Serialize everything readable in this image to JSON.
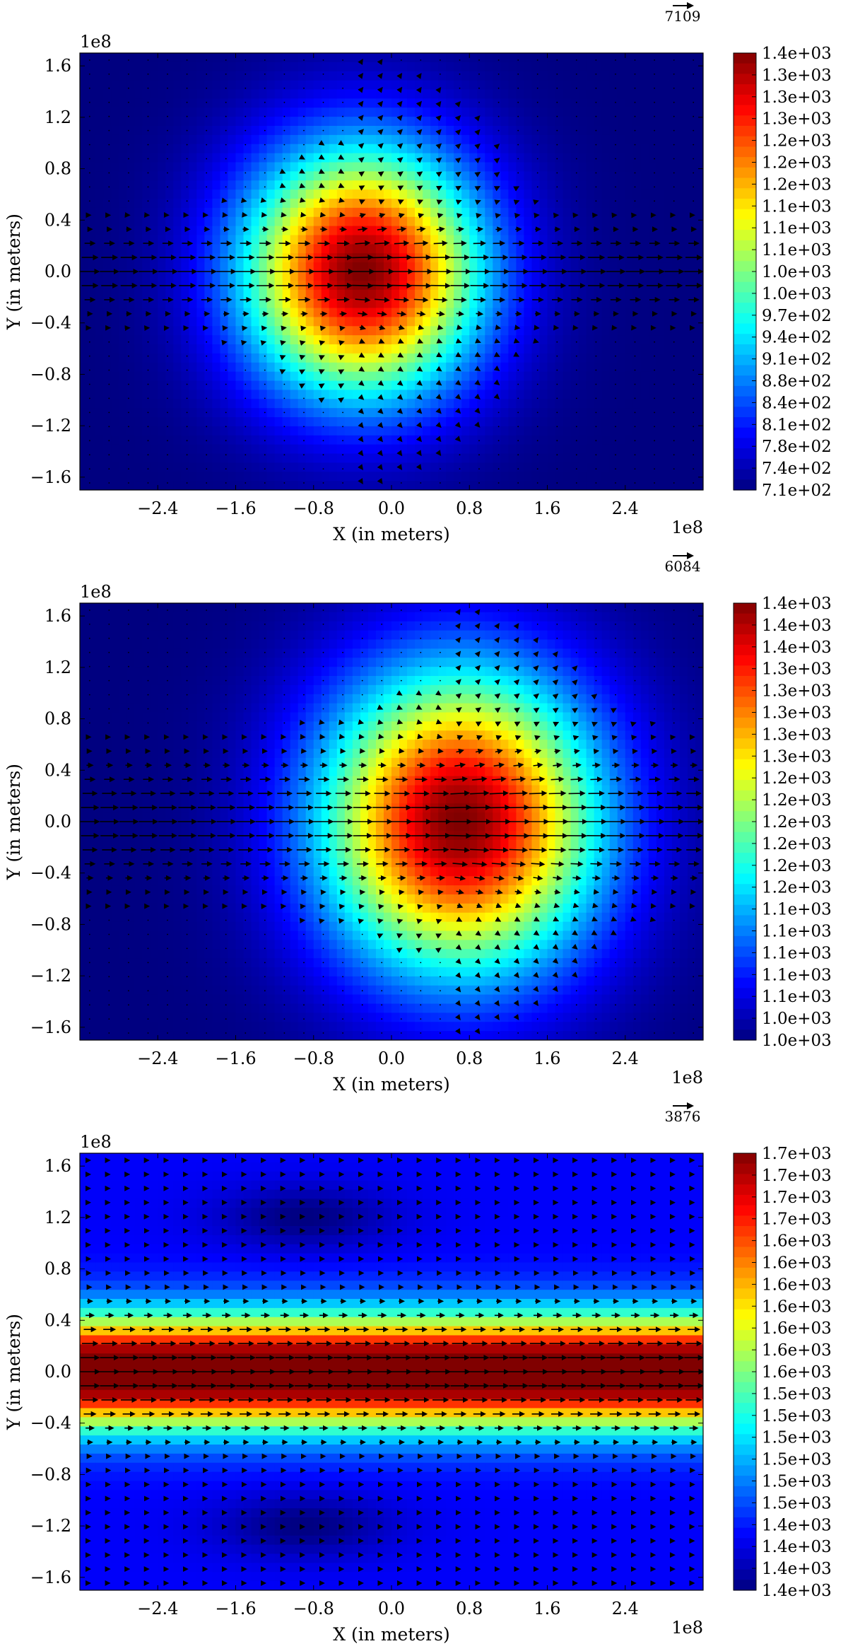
{
  "chart_data": [
    {
      "type": "contour-quiver",
      "xlabel": "X (in meters)",
      "ylabel": "Y (in meters)",
      "x_exponent": "1e8",
      "y_exponent": "1e8",
      "xlim": [
        -3.2,
        3.2
      ],
      "ylim": [
        -1.7,
        1.7
      ],
      "xticks": [
        "−2.4",
        "−1.6",
        "−0.8",
        "0.0",
        "0.8",
        "1.6",
        "2.4"
      ],
      "xtick_values": [
        -2.4,
        -1.6,
        -0.8,
        0.0,
        0.8,
        1.6,
        2.4
      ],
      "yticks": [
        "1.6",
        "1.2",
        "0.8",
        "0.4",
        "0.0",
        "−0.4",
        "−0.8",
        "−1.2",
        "−1.6"
      ],
      "ytick_values": [
        1.6,
        1.2,
        0.8,
        0.4,
        0.0,
        -0.4,
        -0.8,
        -1.2,
        -1.6
      ],
      "quiver_key": "7109",
      "colorbar_range": [
        710,
        1400
      ],
      "colorbar_labels": [
        "1.4e+03",
        "1.3e+03",
        "1.3e+03",
        "1.3e+03",
        "1.2e+03",
        "1.2e+03",
        "1.2e+03",
        "1.1e+03",
        "1.1e+03",
        "1.1e+03",
        "1.0e+03",
        "1.0e+03",
        "9.7e+02",
        "9.4e+02",
        "9.1e+02",
        "8.8e+02",
        "8.4e+02",
        "8.1e+02",
        "7.8e+02",
        "7.4e+02",
        "7.1e+02"
      ],
      "field": {
        "center": [
          -0.3,
          0.0
        ],
        "spread": [
          1.2,
          0.95
        ]
      },
      "flow": "strong rightward jet along y=0"
    },
    {
      "type": "contour-quiver",
      "xlabel": "X (in meters)",
      "ylabel": "Y (in meters)",
      "x_exponent": "1e8",
      "y_exponent": "1e8",
      "xlim": [
        -3.2,
        3.2
      ],
      "ylim": [
        -1.7,
        1.7
      ],
      "xticks": [
        "−2.4",
        "−1.6",
        "−0.8",
        "0.0",
        "0.8",
        "1.6",
        "2.4"
      ],
      "xtick_values": [
        -2.4,
        -1.6,
        -0.8,
        0.0,
        0.8,
        1.6,
        2.4
      ],
      "yticks": [
        "1.6",
        "1.2",
        "0.8",
        "0.4",
        "0.0",
        "−0.4",
        "−0.8",
        "−1.2",
        "−1.6"
      ],
      "ytick_values": [
        1.6,
        1.2,
        0.8,
        0.4,
        0.0,
        -0.4,
        -0.8,
        -1.2,
        -1.6
      ],
      "quiver_key": "6084",
      "colorbar_range": [
        1000,
        1400
      ],
      "colorbar_labels": [
        "1.4e+03",
        "1.4e+03",
        "1.4e+03",
        "1.3e+03",
        "1.3e+03",
        "1.3e+03",
        "1.3e+03",
        "1.3e+03",
        "1.2e+03",
        "1.2e+03",
        "1.2e+03",
        "1.2e+03",
        "1.2e+03",
        "1.2e+03",
        "1.1e+03",
        "1.1e+03",
        "1.1e+03",
        "1.1e+03",
        "1.1e+03",
        "1.0e+03",
        "1.0e+03"
      ],
      "field": {
        "center": [
          0.7,
          0.0
        ],
        "spread": [
          1.4,
          1.15
        ]
      },
      "flow": "rightward jet along y=0"
    },
    {
      "type": "contour-quiver",
      "xlabel": "X (in meters)",
      "ylabel": "Y (in meters)",
      "x_exponent": "1e8",
      "y_exponent": "1e8",
      "xlim": [
        -3.2,
        3.2
      ],
      "ylim": [
        -1.7,
        1.7
      ],
      "xticks": [
        "−2.4",
        "−1.6",
        "−0.8",
        "0.0",
        "0.8",
        "1.6",
        "2.4"
      ],
      "xtick_values": [
        -2.4,
        -1.6,
        -0.8,
        0.0,
        0.8,
        1.6,
        2.4
      ],
      "yticks": [
        "1.6",
        "1.2",
        "0.8",
        "0.4",
        "0.0",
        "−0.4",
        "−0.8",
        "−1.2",
        "−1.6"
      ],
      "ytick_values": [
        1.6,
        1.2,
        0.8,
        0.4,
        0.0,
        -0.4,
        -0.8,
        -1.2,
        -1.6
      ],
      "quiver_key": "3876",
      "colorbar_range": [
        1400,
        1700
      ],
      "colorbar_labels": [
        "1.7e+03",
        "1.7e+03",
        "1.7e+03",
        "1.7e+03",
        "1.6e+03",
        "1.6e+03",
        "1.6e+03",
        "1.6e+03",
        "1.6e+03",
        "1.6e+03",
        "1.6e+03",
        "1.5e+03",
        "1.5e+03",
        "1.5e+03",
        "1.5e+03",
        "1.5e+03",
        "1.5e+03",
        "1.4e+03",
        "1.4e+03",
        "1.4e+03",
        "1.4e+03"
      ],
      "field": {
        "band": "horizontal",
        "center_y": 0.0,
        "spread_y": 0.42
      },
      "flow": "zonal band, rightward along y=0"
    }
  ]
}
